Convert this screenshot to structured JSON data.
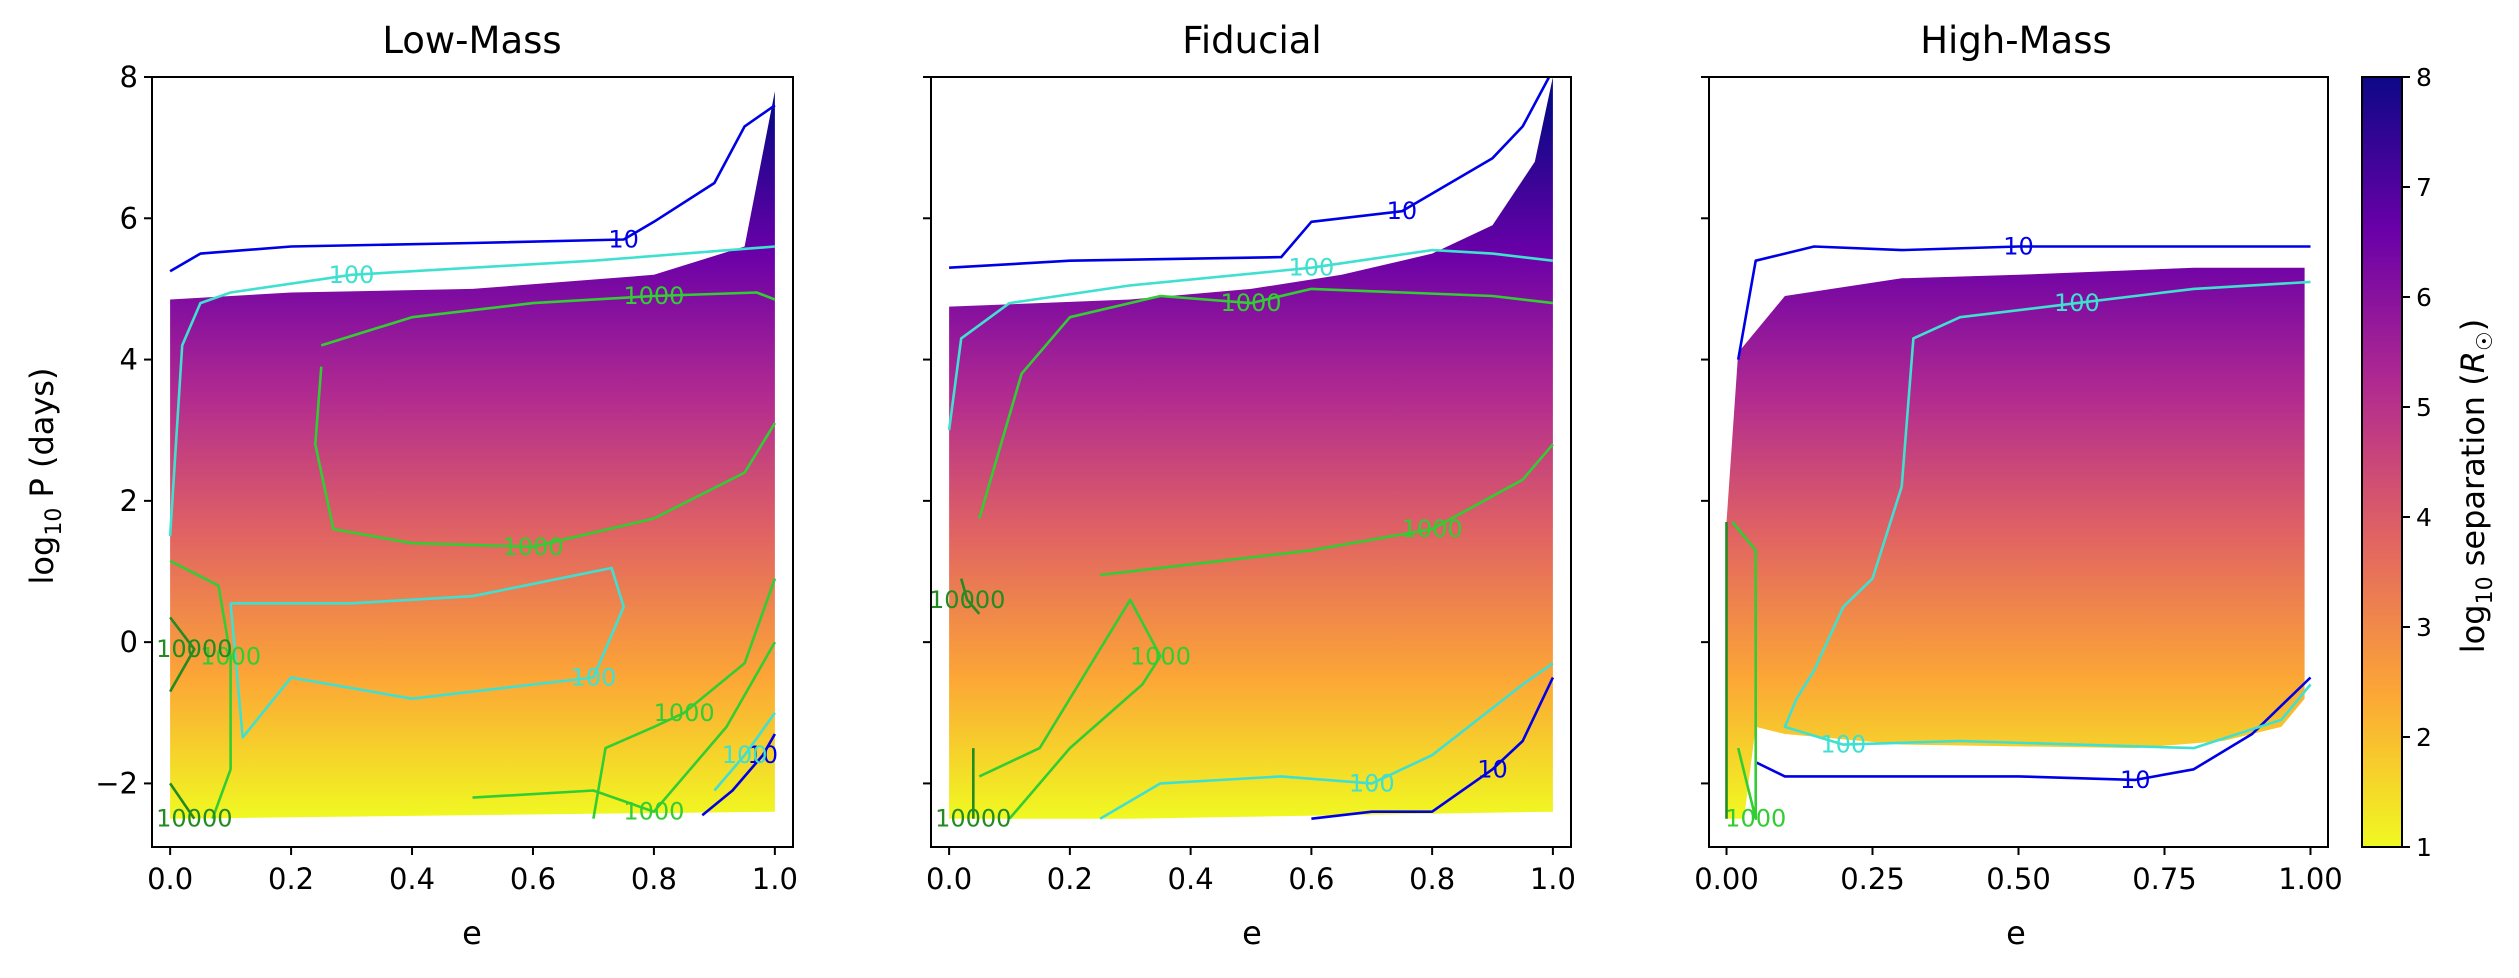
{
  "chart_data": {
    "type": "scatter",
    "ylabel": "log10 P (days)",
    "xlabel": "e",
    "ylim": [
      -2.9,
      8
    ],
    "xlim": [
      -0.03,
      1.03
    ],
    "yticks": [
      -2,
      0,
      2,
      4,
      6,
      8
    ],
    "ytick_labels": [
      "−2",
      "0",
      "2",
      "4",
      "6",
      "8"
    ],
    "colorbar": {
      "label": "log10 separation (R☉)",
      "range": [
        1,
        8
      ],
      "ticks": [
        1,
        2,
        3,
        4,
        5,
        6,
        7,
        8
      ],
      "tick_labels": [
        "1",
        "2",
        "3",
        "4",
        "5",
        "6",
        "7",
        "8"
      ],
      "colormap_stops": [
        "#f0f921",
        "#fca636",
        "#e16462",
        "#b12a90",
        "#6a00a8",
        "#0d0887"
      ]
    },
    "contour_colors": {
      "10": "#0000e6",
      "100": "#40e0d0",
      "1000": "#32cd32",
      "10000": "#228b22"
    },
    "panels": [
      {
        "title": "Low-Mass",
        "xticks": [
          0,
          0.2,
          0.4,
          0.6,
          0.8,
          1.0
        ],
        "xtick_labels": [
          "0.0",
          "0.2",
          "0.4",
          "0.6",
          "0.8",
          "1.0"
        ],
        "scatter_region": {
          "e": [
            0.0,
            0.0,
            0.2,
            0.5,
            0.8,
            0.95,
            1.0,
            1.0,
            0.0
          ],
          "logP": [
            -2.5,
            4.85,
            4.95,
            5.0,
            5.2,
            5.6,
            7.8,
            -2.4,
            -2.5
          ]
        },
        "contours": [
          {
            "level": "10",
            "e": [
              0.0,
              0.05,
              0.2,
              0.5,
              0.75,
              0.8,
              0.9,
              0.95,
              1.0
            ],
            "logP": [
              5.25,
              5.5,
              5.6,
              5.65,
              5.7,
              5.95,
              6.5,
              7.3,
              7.6
            ]
          },
          {
            "level": "10",
            "e": [
              0.88,
              0.93,
              0.98,
              1.0
            ],
            "logP": [
              -2.45,
              -2.1,
              -1.6,
              -1.3
            ]
          },
          {
            "level": "100",
            "e": [
              0.0,
              0.02,
              0.05,
              0.1,
              0.3,
              0.5,
              0.7,
              0.85,
              1.0
            ],
            "logP": [
              1.5,
              4.2,
              4.8,
              4.95,
              5.2,
              5.3,
              5.4,
              5.5,
              5.6
            ]
          },
          {
            "level": "100",
            "e": [
              0.1,
              0.12,
              0.2,
              0.4,
              0.6,
              0.7,
              0.75,
              0.73,
              0.5,
              0.3,
              0.1
            ],
            "logP": [
              0.55,
              -1.35,
              -0.5,
              -0.8,
              -0.6,
              -0.5,
              0.5,
              1.05,
              0.65,
              0.55,
              0.55
            ]
          },
          {
            "level": "100",
            "e": [
              0.9,
              0.95,
              1.0
            ],
            "logP": [
              -2.1,
              -1.6,
              -1.0
            ]
          },
          {
            "level": "1000",
            "e": [
              0.25,
              0.4,
              0.6,
              0.8,
              0.97,
              1.0
            ],
            "logP": [
              4.2,
              4.6,
              4.8,
              4.9,
              4.95,
              4.85
            ]
          },
          {
            "level": "1000",
            "e": [
              0.25,
              0.24,
              0.27,
              0.4,
              0.6,
              0.8,
              0.95,
              1.0
            ],
            "logP": [
              3.9,
              2.8,
              1.6,
              1.4,
              1.35,
              1.75,
              2.4,
              3.1
            ]
          },
          {
            "level": "1000",
            "e": [
              0.0,
              0.08,
              0.1,
              0.1,
              0.07
            ],
            "logP": [
              1.15,
              0.8,
              -0.2,
              -1.8,
              -2.5
            ]
          },
          {
            "level": "1000",
            "e": [
              0.7,
              0.72,
              0.8,
              0.85,
              0.95,
              1.0
            ],
            "logP": [
              -2.5,
              -1.5,
              -1.2,
              -1.0,
              -0.3,
              0.9
            ]
          },
          {
            "level": "1000",
            "e": [
              0.5,
              0.7,
              0.8,
              0.92,
              1.0
            ],
            "logP": [
              -2.2,
              -2.1,
              -2.4,
              -1.2,
              0.0
            ]
          },
          {
            "level": "10000",
            "e": [
              0.0,
              0.04,
              0.0
            ],
            "logP": [
              0.35,
              -0.1,
              -0.7
            ]
          },
          {
            "level": "10000",
            "e": [
              0.0,
              0.04
            ],
            "logP": [
              -2.0,
              -2.5
            ]
          }
        ]
      },
      {
        "title": "Fiducial",
        "xticks": [
          0,
          0.2,
          0.4,
          0.6,
          0.8,
          1.0
        ],
        "xtick_labels": [
          "0.0",
          "0.2",
          "0.4",
          "0.6",
          "0.8",
          "1.0"
        ],
        "scatter_region": {
          "e": [
            0.0,
            0.0,
            0.3,
            0.5,
            0.65,
            0.8,
            0.9,
            0.97,
            1.0,
            1.0,
            0.3,
            0.0
          ],
          "logP": [
            -2.5,
            4.75,
            4.85,
            5.0,
            5.2,
            5.5,
            5.9,
            6.8,
            8.0,
            -2.4,
            -2.5,
            -2.5
          ]
        },
        "contours": [
          {
            "level": "10",
            "e": [
              0.0,
              0.2,
              0.55,
              0.6,
              0.75,
              0.9,
              0.95,
              1.0
            ],
            "logP": [
              5.3,
              5.4,
              5.45,
              5.95,
              6.1,
              6.85,
              7.3,
              8.1
            ]
          },
          {
            "level": "10",
            "e": [
              0.6,
              0.7,
              0.8,
              0.9,
              0.95,
              1.0
            ],
            "logP": [
              -2.5,
              -2.4,
              -2.4,
              -1.8,
              -1.4,
              -0.5
            ]
          },
          {
            "level": "100",
            "e": [
              0.0,
              0.02,
              0.1,
              0.3,
              0.6,
              0.8,
              0.9,
              1.0
            ],
            "logP": [
              3.0,
              4.3,
              4.8,
              5.05,
              5.3,
              5.55,
              5.5,
              5.4
            ]
          },
          {
            "level": "100",
            "e": [
              0.25,
              0.35,
              0.55,
              0.7,
              0.8,
              0.95,
              1.0
            ],
            "logP": [
              -2.5,
              -2.0,
              -1.9,
              -2.0,
              -1.6,
              -0.6,
              -0.3
            ]
          },
          {
            "level": "1000",
            "e": [
              0.05,
              0.12,
              0.2,
              0.35,
              0.5,
              0.6,
              0.9,
              1.0
            ],
            "logP": [
              1.75,
              3.8,
              4.6,
              4.9,
              4.8,
              5.0,
              4.9,
              4.8
            ]
          },
          {
            "level": "1000",
            "e": [
              0.25,
              0.4,
              0.6,
              0.8,
              0.95,
              1.0
            ],
            "logP": [
              0.95,
              1.1,
              1.3,
              1.6,
              2.3,
              2.8
            ]
          },
          {
            "level": "1000",
            "e": [
              0.1,
              0.2,
              0.32,
              0.35,
              0.3,
              0.15,
              0.05
            ],
            "logP": [
              -2.5,
              -1.5,
              -0.6,
              -0.2,
              0.6,
              -1.5,
              -1.9
            ]
          },
          {
            "level": "10000",
            "e": [
              0.02,
              0.03,
              0.05
            ],
            "logP": [
              0.9,
              0.6,
              0.4
            ]
          },
          {
            "level": "10000",
            "e": [
              0.04,
              0.04
            ],
            "logP": [
              -1.5,
              -2.5
            ]
          }
        ]
      },
      {
        "title": "High-Mass",
        "xticks": [
          0,
          0.25,
          0.5,
          0.75,
          1.0
        ],
        "xtick_labels": [
          "0.00",
          "0.25",
          "0.50",
          "0.75",
          "1.00"
        ],
        "scatter_region": {
          "e": [
            0.0,
            0.0,
            0.02,
            0.1,
            0.3,
            0.5,
            0.8,
            0.99,
            0.99,
            0.95,
            0.85,
            0.7,
            0.3,
            0.1,
            0.05,
            0.03
          ],
          "logP": [
            -2.5,
            1.7,
            4.1,
            4.9,
            5.15,
            5.2,
            5.3,
            5.3,
            -0.8,
            -1.2,
            -1.4,
            -1.5,
            -1.45,
            -1.3,
            -1.2,
            -2.5
          ]
        },
        "contours": [
          {
            "level": "10",
            "e": [
              0.02,
              0.05,
              0.15,
              0.3,
              0.5,
              0.7,
              0.9,
              1.0
            ],
            "logP": [
              4.0,
              5.4,
              5.6,
              5.55,
              5.6,
              5.6,
              5.6,
              5.6
            ]
          },
          {
            "level": "10",
            "e": [
              0.05,
              0.1,
              0.3,
              0.5,
              0.7,
              0.8,
              0.9,
              0.95,
              1.0
            ],
            "logP": [
              -1.7,
              -1.9,
              -1.9,
              -1.9,
              -1.95,
              -1.8,
              -1.3,
              -0.9,
              -0.5
            ]
          },
          {
            "level": "100",
            "e": [
              0.3,
              0.32,
              0.4,
              0.6,
              0.8,
              1.0
            ],
            "logP": [
              2.2,
              4.3,
              4.6,
              4.8,
              5.0,
              5.1
            ]
          },
          {
            "level": "100",
            "e": [
              0.3,
              0.25,
              0.2,
              0.15,
              0.12,
              0.1,
              0.2,
              0.4,
              0.6,
              0.8,
              0.95,
              1.0
            ],
            "logP": [
              2.2,
              0.9,
              0.5,
              -0.4,
              -0.8,
              -1.2,
              -1.45,
              -1.4,
              -1.45,
              -1.5,
              -1.1,
              -0.6
            ]
          },
          {
            "level": "1000",
            "e": [
              0.01,
              0.05,
              0.05,
              0.02
            ],
            "logP": [
              1.7,
              1.3,
              -2.5,
              -1.5
            ]
          },
          {
            "level": "10000",
            "e": [
              0.0,
              0.0
            ],
            "logP": [
              1.7,
              -2.5
            ]
          }
        ]
      }
    ]
  }
}
